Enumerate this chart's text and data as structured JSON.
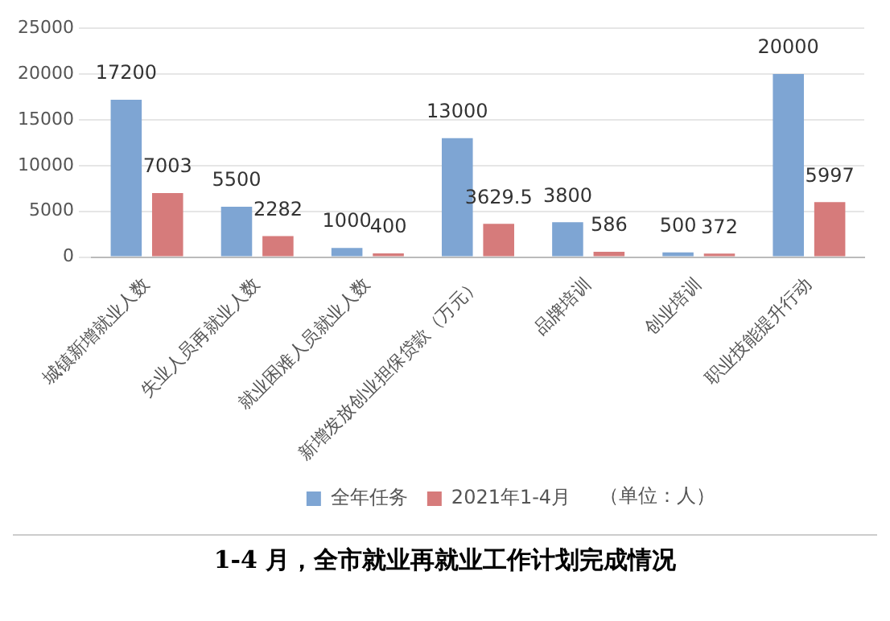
{
  "chart_data": {
    "type": "bar",
    "title": "1-4 月，全市就业再就业工作计划完成情况",
    "categories": [
      "城镇新增就业人数",
      "失业人员再就业人数",
      "就业困难人员就业人数",
      "新增发放创业担保贷款（万元）",
      "品牌培训",
      "创业培训",
      "职业技能提升行动"
    ],
    "series": [
      {
        "name": "全年任务",
        "color": "#7ea5d3",
        "values": [
          17200,
          5500,
          1000,
          13000,
          3800,
          500,
          20000
        ]
      },
      {
        "name": "2021年1-4月",
        "color": "#d67b7b",
        "values": [
          7003,
          2282,
          400,
          3629.5,
          586,
          372,
          5997
        ]
      }
    ],
    "ylim": [
      0,
      25000
    ],
    "yticks": [
      0,
      5000,
      10000,
      15000,
      20000,
      25000
    ],
    "grid": "y",
    "legend": "bottom",
    "data_labels": true,
    "annotations": [
      "（单位：人）"
    ]
  }
}
